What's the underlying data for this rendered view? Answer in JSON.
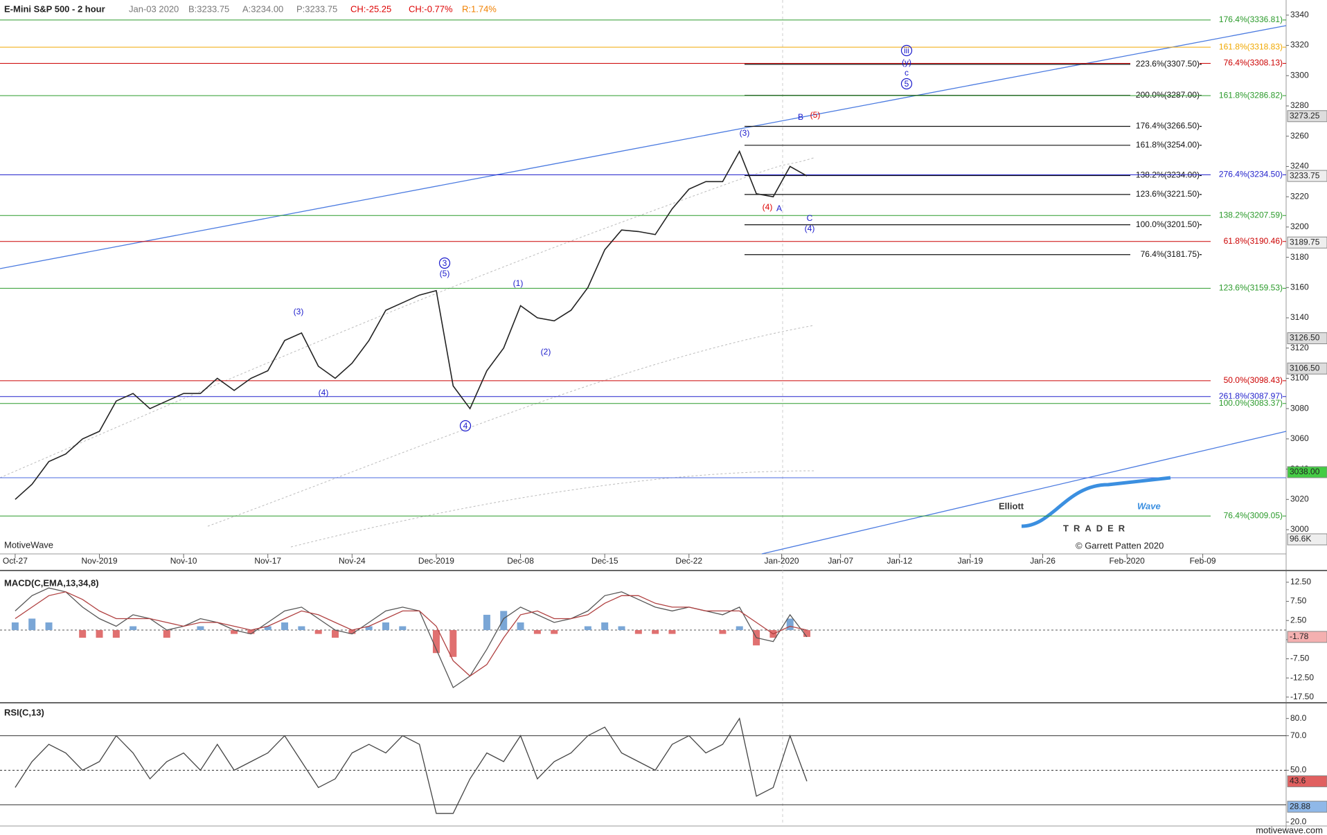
{
  "chart_data": [
    {
      "type": "line",
      "title": "E-Mini S&P 500 - 2 hour",
      "quote": [
        {
          "text": "Jan-03 2020",
          "color": "#777777"
        },
        {
          "text": "B:3233.75",
          "color": "#777777"
        },
        {
          "text": "A:3234.00",
          "color": "#777777"
        },
        {
          "text": "P:3233.75",
          "color": "#777777"
        },
        {
          "text": "CH:-25.25",
          "color": "#dd0000"
        },
        {
          "text": "CH:-0.77%",
          "color": "#dd0000"
        },
        {
          "text": "R:1.74%",
          "color": "#f08000"
        }
      ],
      "watermark": "MotiveWave",
      "logo": {
        "part1": "Elliott",
        "part2": "Wave",
        "part3": "TRADER",
        "credit": "© Garrett Patten 2020"
      },
      "color": "#222222",
      "x": [
        0,
        1,
        2,
        3,
        4,
        5,
        6,
        7,
        8,
        9,
        10,
        11,
        12,
        13,
        14,
        15,
        16,
        17,
        18,
        19,
        20,
        21,
        22,
        23,
        24,
        25,
        26,
        27,
        28,
        29,
        30,
        31,
        32,
        33,
        34,
        35,
        36,
        37,
        38,
        39,
        40,
        41,
        42,
        43,
        44,
        45,
        46,
        47
      ],
      "values": [
        3020,
        3030,
        3045,
        3050,
        3060,
        3065,
        3085,
        3090,
        3080,
        3085,
        3090,
        3090,
        3100,
        3092,
        3100,
        3105,
        3125,
        3130,
        3108,
        3100,
        3110,
        3125,
        3145,
        3150,
        3155,
        3158,
        3095,
        3080,
        3105,
        3120,
        3148,
        3140,
        3138,
        3145,
        3160,
        3185,
        3198,
        3197,
        3195,
        3212,
        3225,
        3230,
        3230,
        3250,
        3222,
        3220,
        3240,
        3233.75
      ],
      "xlim": [
        -0.9,
        75.45
      ],
      "ylim": [
        2984,
        3350
      ],
      "yticks": [
        3000,
        3020,
        3040,
        3060,
        3080,
        3100,
        3120,
        3140,
        3160,
        3180,
        3200,
        3220,
        3240,
        3260,
        3280,
        3300,
        3320,
        3340
      ],
      "xticks": [
        {
          "value": 0,
          "label": "Oct-27"
        },
        {
          "value": 5,
          "label": "Nov-2019"
        },
        {
          "value": 10,
          "label": "Nov-10"
        },
        {
          "value": 15,
          "label": "Nov-17"
        },
        {
          "value": 20,
          "label": "Nov-24"
        },
        {
          "value": 25,
          "label": "Dec-2019"
        },
        {
          "value": 30,
          "label": "Dec-08"
        },
        {
          "value": 35,
          "label": "Dec-15"
        },
        {
          "value": 40,
          "label": "Dec-22"
        },
        {
          "value": 45.5,
          "label": "Jan-2020"
        },
        {
          "value": 49,
          "label": "Jan-07"
        },
        {
          "value": 52.5,
          "label": "Jan-12"
        },
        {
          "value": 56.7,
          "label": "Jan-19"
        },
        {
          "value": 61,
          "label": "Jan-26"
        },
        {
          "value": 66,
          "label": "Feb-2020"
        },
        {
          "value": 70.5,
          "label": "Feb-09"
        }
      ],
      "levels": [
        {
          "value": 3336.81,
          "label": "176.4%(3336.81)",
          "color": "#2a9a2a",
          "span": "full"
        },
        {
          "value": 3318.83,
          "label": "161.8%(3318.83)",
          "color": "#f0a800",
          "span": "full"
        },
        {
          "value": 3308.13,
          "label": "76.4%(3308.13)",
          "color": "#cc0000",
          "span": "full"
        },
        {
          "value": 3307.5,
          "label": "223.6%(3307.50)",
          "color": "#111111",
          "span": "partial"
        },
        {
          "value": 3287,
          "label": "200.0%(3287.00)",
          "color": "#111111",
          "span": "partial"
        },
        {
          "value": 3286.82,
          "label": "161.8%(3286.82)",
          "color": "#2a9a2a",
          "span": "full"
        },
        {
          "value": 3266.5,
          "label": "176.4%(3266.50)",
          "color": "#111111",
          "span": "partial"
        },
        {
          "value": 3254,
          "label": "161.8%(3254.00)",
          "color": "#111111",
          "span": "partial"
        },
        {
          "value": 3234,
          "label": "138.2%(3234.00)",
          "color": "#111111",
          "span": "partial"
        },
        {
          "value": 3234.5,
          "label": "276.4%(3234.50)",
          "color": "#2222cc",
          "span": "full"
        },
        {
          "value": 3221.5,
          "label": "123.6%(3221.50)",
          "color": "#111111",
          "span": "partial"
        },
        {
          "value": 3207.59,
          "label": "138.2%(3207.59)",
          "color": "#2a9a2a",
          "span": "full"
        },
        {
          "value": 3201.5,
          "label": "100.0%(3201.50)",
          "color": "#111111",
          "span": "partial"
        },
        {
          "value": 3190.46,
          "label": "61.8%(3190.46)",
          "color": "#cc0000",
          "span": "full"
        },
        {
          "value": 3181.75,
          "label": "76.4%(3181.75)",
          "color": "#111111",
          "span": "partial"
        },
        {
          "value": 3159.53,
          "label": "123.6%(3159.53)",
          "color": "#2a9a2a",
          "span": "full"
        },
        {
          "value": 3098.43,
          "label": "50.0%(3098.43)",
          "color": "#cc0000",
          "span": "full"
        },
        {
          "value": 3087.97,
          "label": "261.8%(3087.97)",
          "color": "#2222cc",
          "span": "full"
        },
        {
          "value": 3083.37,
          "label": "100.0%(3083.37)",
          "color": "#2a9a2a",
          "span": "full"
        },
        {
          "value": 3009.05,
          "label": "76.4%(3009.05)",
          "color": "#2a9a2a",
          "span": "full"
        }
      ],
      "price_markers": [
        {
          "value": 3273.25,
          "label": "3273.25",
          "color": "#dddddd"
        },
        {
          "value": 3233.75,
          "label": "3233.75",
          "color": "#eeeeee"
        },
        {
          "value": 3189.75,
          "label": "3189.75",
          "color": "#eeeeee"
        },
        {
          "value": 3126.5,
          "label": "3126.50",
          "color": "#dddddd"
        },
        {
          "value": 3106.5,
          "label": "3106.50",
          "color": "#dddddd"
        },
        {
          "value": 3038,
          "label": "3038.00",
          "color": "#44cc44"
        }
      ],
      "volume_label": "96.6K",
      "annotations": [
        {
          "text": "(3)",
          "color": "#1a1acc",
          "circled": false
        },
        {
          "text": "(4)",
          "color": "#1a1acc",
          "circled": false
        },
        {
          "text": "3",
          "color": "#1a1acc",
          "circled": true
        },
        {
          "text": "(5)",
          "color": "#1a1acc",
          "circled": false
        },
        {
          "text": "4",
          "color": "#1a1acc",
          "circled": true
        },
        {
          "text": "(1)",
          "color": "#1a1acc",
          "circled": false
        },
        {
          "text": "(2)",
          "color": "#1a1acc",
          "circled": false
        },
        {
          "text": "(3)",
          "color": "#1a1acc",
          "circled": false
        },
        {
          "text": "(4)",
          "color": "#dd0000",
          "circled": false
        },
        {
          "text": "A",
          "color": "#1a1acc",
          "circled": false
        },
        {
          "text": "B",
          "color": "#1a1acc",
          "circled": false
        },
        {
          "text": "(5)",
          "color": "#dd0000",
          "circled": false
        },
        {
          "text": "C",
          "color": "#1a1acc",
          "circled": false
        },
        {
          "text": "(4)",
          "color": "#1a1acc",
          "circled": false
        },
        {
          "text": "iii",
          "color": "#1a1acc",
          "circled": true
        },
        {
          "text": "(y)",
          "color": "#1a1acc",
          "circled": false
        },
        {
          "text": "c",
          "color": "#1a1acc",
          "circled": false
        },
        {
          "text": "5",
          "color": "#1a1acc",
          "circled": true
        }
      ]
    },
    {
      "type": "macd",
      "title": "MACD(C,EMA,13,34,8)",
      "x": [
        0,
        1,
        2,
        3,
        4,
        5,
        6,
        7,
        8,
        9,
        10,
        11,
        12,
        13,
        14,
        15,
        16,
        17,
        18,
        19,
        20,
        21,
        22,
        23,
        24,
        25,
        26,
        27,
        28,
        29,
        30,
        31,
        32,
        33,
        34,
        35,
        36,
        37,
        38,
        39,
        40,
        41,
        42,
        43,
        44,
        45,
        46,
        47
      ],
      "series": [
        {
          "color": "#555555",
          "values": [
            5,
            9,
            11,
            10,
            6,
            3,
            1,
            4,
            3,
            0,
            1,
            3,
            2,
            0,
            -1,
            2,
            5,
            6,
            3,
            0,
            -1,
            2,
            5,
            6,
            5,
            -5,
            -15,
            -12,
            -5,
            3,
            6,
            4,
            2,
            3,
            5,
            9,
            10,
            8,
            6,
            5,
            6,
            5,
            4,
            6,
            -2,
            -3,
            4,
            -1.78
          ]
        },
        {
          "color": "#b04040",
          "values": [
            3,
            6,
            9,
            10,
            8,
            5,
            3,
            3,
            3,
            2,
            1,
            2,
            2,
            1,
            0,
            1,
            3,
            5,
            4,
            2,
            0,
            1,
            3,
            5,
            5,
            1,
            -8,
            -12,
            -9,
            -2,
            4,
            5,
            3,
            3,
            4,
            7,
            9,
            9,
            7,
            6,
            6,
            5,
            5,
            5,
            2,
            -1,
            1,
            0
          ]
        }
      ],
      "histogram": {
        "colors": [
          "#7aa6d6",
          "#e07070"
        ],
        "values": [
          2,
          3,
          2,
          0,
          -2,
          -2,
          -2,
          1,
          0,
          -2,
          0,
          1,
          0,
          -1,
          -1,
          1,
          2,
          1,
          -1,
          -2,
          -1,
          1,
          2,
          1,
          0,
          -6,
          -7,
          0,
          4,
          5,
          2,
          -1,
          -1,
          0,
          1,
          2,
          1,
          -1,
          -1,
          -1,
          0,
          0,
          -1,
          1,
          -4,
          -2,
          3,
          -1.78
        ]
      },
      "ylim": [
        -18.8,
        15.2
      ],
      "yticks": [
        {
          "value": 12.5,
          "label": "12.50"
        },
        {
          "value": 7.5,
          "label": "7.50"
        },
        {
          "value": 2.5,
          "label": "2.50"
        },
        {
          "value": -2.5,
          "label": "-2.50"
        },
        {
          "value": -7.5,
          "label": "-7.50"
        },
        {
          "value": -12.5,
          "label": "-12.50"
        },
        {
          "value": -17.5,
          "label": "-17.50"
        }
      ],
      "marker": -1.78
    },
    {
      "type": "rsi",
      "title": "RSI(C,13)",
      "x": [
        0,
        1,
        2,
        3,
        4,
        5,
        6,
        7,
        8,
        9,
        10,
        11,
        12,
        13,
        14,
        15,
        16,
        17,
        18,
        19,
        20,
        21,
        22,
        23,
        24,
        25,
        26,
        27,
        28,
        29,
        30,
        31,
        32,
        33,
        34,
        35,
        36,
        37,
        38,
        39,
        40,
        41,
        42,
        43,
        44,
        45,
        46,
        47
      ],
      "values": [
        40,
        55,
        65,
        60,
        50,
        55,
        70,
        60,
        45,
        55,
        60,
        50,
        65,
        50,
        55,
        60,
        70,
        55,
        40,
        45,
        60,
        65,
        60,
        70,
        65,
        25,
        25,
        45,
        60,
        55,
        70,
        45,
        55,
        60,
        70,
        75,
        60,
        55,
        50,
        65,
        70,
        60,
        65,
        80,
        35,
        40,
        70,
        43.6
      ],
      "color": "#444444",
      "ylim": [
        18.5,
        88.3
      ],
      "yticks": [
        {
          "value": 80,
          "label": "80.0"
        },
        {
          "value": 70,
          "label": "70.0"
        },
        {
          "value": 50,
          "label": "50.0"
        },
        {
          "value": 20,
          "label": "20.0"
        }
      ],
      "levels": [
        70,
        30
      ],
      "midline": 50,
      "markers": [
        {
          "value": 43.6,
          "color": "#e06060"
        },
        {
          "value": 28.88,
          "color": "#8fb8e8"
        }
      ],
      "footer": "motivewave.com"
    }
  ]
}
